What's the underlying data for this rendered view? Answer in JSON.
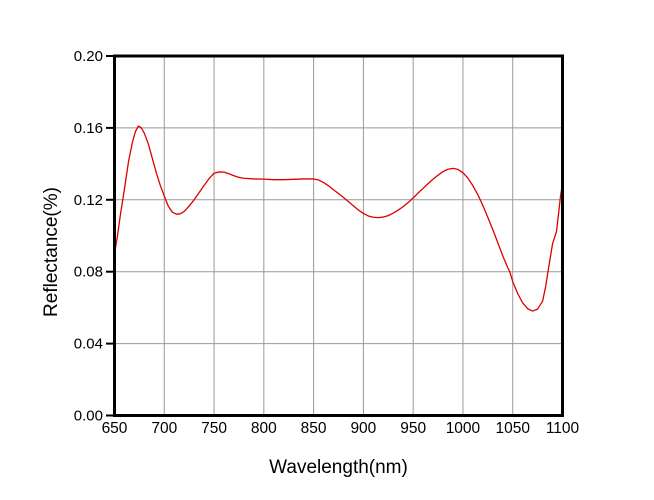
{
  "chart_data": {
    "type": "line",
    "title": "",
    "xlabel": "Wavelength(nm)",
    "ylabel": "Reflectance(%)",
    "xlim": [
      650,
      1100
    ],
    "ylim": [
      0.0,
      0.2
    ],
    "x_ticks": [
      650,
      700,
      750,
      800,
      850,
      900,
      950,
      1000,
      1050,
      1100
    ],
    "x_tick_labels": [
      "650",
      "700",
      "750",
      "800",
      "850",
      "900",
      "950",
      "1000",
      "1050",
      "1100"
    ],
    "y_ticks": [
      0.0,
      0.04,
      0.08,
      0.12,
      0.16,
      0.2
    ],
    "y_tick_labels": [
      "0.00",
      "0.04",
      "0.08",
      "0.12",
      "0.16",
      "0.20"
    ],
    "grid": true,
    "legend": "none",
    "colors": {
      "line": "#dd0000",
      "grid": "#999999",
      "axis": "#000000",
      "tick_label": "#000000",
      "axis_title": "#000000",
      "background": "#ffffff"
    },
    "series": [
      {
        "name": "Reflectance",
        "points": [
          [
            650,
            0.09
          ],
          [
            653,
            0.1
          ],
          [
            656,
            0.112
          ],
          [
            660,
            0.126
          ],
          [
            664,
            0.141
          ],
          [
            668,
            0.152
          ],
          [
            671,
            0.158
          ],
          [
            674,
            0.161
          ],
          [
            677,
            0.16
          ],
          [
            680,
            0.157
          ],
          [
            684,
            0.151
          ],
          [
            688,
            0.143
          ],
          [
            692,
            0.135
          ],
          [
            696,
            0.128
          ],
          [
            700,
            0.122
          ],
          [
            704,
            0.1165
          ],
          [
            708,
            0.1132
          ],
          [
            712,
            0.112
          ],
          [
            716,
            0.1122
          ],
          [
            720,
            0.1135
          ],
          [
            725,
            0.1165
          ],
          [
            730,
            0.12
          ],
          [
            735,
            0.124
          ],
          [
            740,
            0.128
          ],
          [
            745,
            0.1318
          ],
          [
            750,
            0.1348
          ],
          [
            755,
            0.1355
          ],
          [
            760,
            0.1354
          ],
          [
            765,
            0.1345
          ],
          [
            770,
            0.1334
          ],
          [
            775,
            0.1325
          ],
          [
            780,
            0.132
          ],
          [
            790,
            0.1316
          ],
          [
            800,
            0.1315
          ],
          [
            810,
            0.1312
          ],
          [
            820,
            0.1312
          ],
          [
            830,
            0.1314
          ],
          [
            840,
            0.1316
          ],
          [
            850,
            0.1316
          ],
          [
            855,
            0.131
          ],
          [
            860,
            0.1296
          ],
          [
            865,
            0.1278
          ],
          [
            870,
            0.1256
          ],
          [
            875,
            0.1235
          ],
          [
            880,
            0.1213
          ],
          [
            885,
            0.119
          ],
          [
            890,
            0.1166
          ],
          [
            895,
            0.1143
          ],
          [
            900,
            0.1124
          ],
          [
            905,
            0.111
          ],
          [
            910,
            0.1103
          ],
          [
            915,
            0.1101
          ],
          [
            920,
            0.1104
          ],
          [
            925,
            0.1112
          ],
          [
            930,
            0.1126
          ],
          [
            935,
            0.1143
          ],
          [
            940,
            0.1162
          ],
          [
            945,
            0.1185
          ],
          [
            950,
            0.121
          ],
          [
            955,
            0.1238
          ],
          [
            960,
            0.1264
          ],
          [
            965,
            0.129
          ],
          [
            970,
            0.1315
          ],
          [
            975,
            0.1337
          ],
          [
            980,
            0.1357
          ],
          [
            985,
            0.137
          ],
          [
            990,
            0.1375
          ],
          [
            995,
            0.1369
          ],
          [
            1000,
            0.1351
          ],
          [
            1005,
            0.132
          ],
          [
            1010,
            0.1278
          ],
          [
            1015,
            0.1228
          ],
          [
            1020,
            0.1168
          ],
          [
            1025,
            0.1102
          ],
          [
            1030,
            0.1034
          ],
          [
            1035,
            0.0962
          ],
          [
            1040,
            0.0888
          ],
          [
            1045,
            0.0822
          ],
          [
            1047,
            0.08
          ],
          [
            1050,
            0.0745
          ],
          [
            1055,
            0.0678
          ],
          [
            1060,
            0.0626
          ],
          [
            1065,
            0.0594
          ],
          [
            1070,
            0.0581
          ],
          [
            1075,
            0.0592
          ],
          [
            1080,
            0.0636
          ],
          [
            1083,
            0.0715
          ],
          [
            1086,
            0.082
          ],
          [
            1090,
            0.0955
          ],
          [
            1094,
            0.1025
          ],
          [
            1096,
            0.112
          ],
          [
            1098,
            0.122
          ],
          [
            1100,
            0.129
          ]
        ]
      }
    ]
  }
}
